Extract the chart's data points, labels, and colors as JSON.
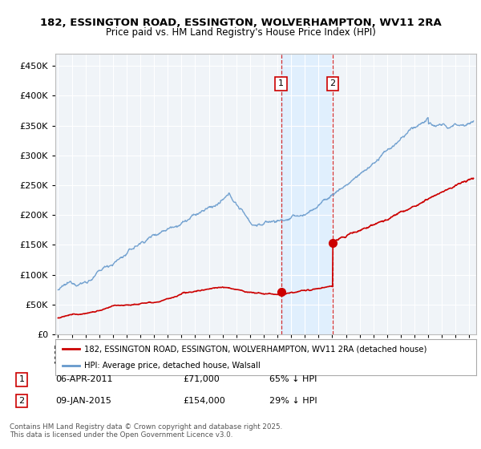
{
  "title": "182, ESSINGTON ROAD, ESSINGTON, WOLVERHAMPTON, WV11 2RA",
  "subtitle": "Price paid vs. HM Land Registry's House Price Index (HPI)",
  "ylim": [
    0,
    470000
  ],
  "yticks": [
    0,
    50000,
    100000,
    150000,
    200000,
    250000,
    300000,
    350000,
    400000,
    450000
  ],
  "xlim_start": 1994.8,
  "xlim_end": 2025.5,
  "sale1_date": 2011.27,
  "sale1_price": 71000,
  "sale1_label": "1",
  "sale1_date_str": "06-APR-2011",
  "sale1_amount_str": "£71,000",
  "sale1_hpi_str": "65% ↓ HPI",
  "sale2_date": 2015.03,
  "sale2_price": 154000,
  "sale2_label": "2",
  "sale2_date_str": "09-JAN-2015",
  "sale2_amount_str": "£154,000",
  "sale2_hpi_str": "29% ↓ HPI",
  "legend_property": "182, ESSINGTON ROAD, ESSINGTON, WOLVERHAMPTON, WV11 2RA (detached house)",
  "legend_hpi": "HPI: Average price, detached house, Walsall",
  "footer": "Contains HM Land Registry data © Crown copyright and database right 2025.\nThis data is licensed under the Open Government Licence v3.0.",
  "property_color": "#cc0000",
  "hpi_color": "#6699cc",
  "background_color": "#f0f4f8",
  "plot_bg_color": "#f0f4f8",
  "grid_color": "#ffffff",
  "shade_color": "#ddeeff"
}
